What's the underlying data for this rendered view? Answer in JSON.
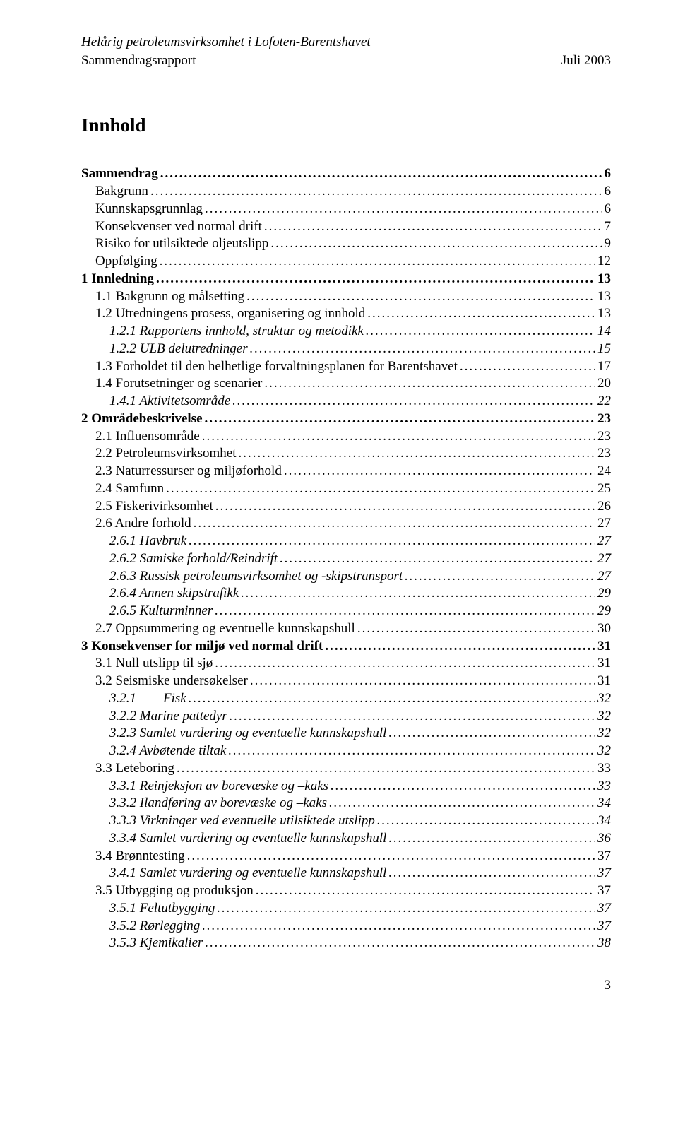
{
  "header": {
    "line1": "Helårig petroleumsvirksomhet i Lofoten-Barentshavet",
    "left2": "Sammendragsrapport",
    "right2": "Juli 2003"
  },
  "title": "Innhold",
  "page_number": "3",
  "toc": [
    {
      "level": 0,
      "label": "Sammendrag",
      "page": "6",
      "italic": false
    },
    {
      "level": 1,
      "label": "Bakgrunn",
      "page": "6",
      "italic": false
    },
    {
      "level": 1,
      "label": "Kunnskapsgrunnlag",
      "page": "6",
      "italic": false
    },
    {
      "level": 1,
      "label": "Konsekvenser ved normal drift",
      "page": "7",
      "italic": false
    },
    {
      "level": 1,
      "label": "Risiko for utilsiktede oljeutslipp",
      "page": "9",
      "italic": false
    },
    {
      "level": 1,
      "label": "Oppfølging",
      "page": "12",
      "italic": false
    },
    {
      "level": 0,
      "label": "1 Innledning",
      "page": "13",
      "italic": false
    },
    {
      "level": 1,
      "label": "1.1 Bakgrunn og målsetting",
      "page": "13",
      "italic": false
    },
    {
      "level": 1,
      "label": "1.2 Utredningens prosess, organisering og innhold",
      "page": "13",
      "italic": false
    },
    {
      "level": 2,
      "label": "1.2.1 Rapportens innhold, struktur og metodikk",
      "page": "14",
      "italic": true
    },
    {
      "level": 2,
      "label": "1.2.2 ULB delutredninger",
      "page": "15",
      "italic": true
    },
    {
      "level": 1,
      "label": "1.3 Forholdet til den helhetlige forvaltningsplanen for Barentshavet",
      "page": "17",
      "italic": false
    },
    {
      "level": 1,
      "label": "1.4 Forutsetninger og scenarier",
      "page": "20",
      "italic": false
    },
    {
      "level": 2,
      "label": "1.4.1 Aktivitetsområde",
      "page": "22",
      "italic": true
    },
    {
      "level": 0,
      "label": "2 Områdebeskrivelse",
      "page": "23",
      "italic": false
    },
    {
      "level": 1,
      "label": "2.1 Influensområde",
      "page": "23",
      "italic": false
    },
    {
      "level": 1,
      "label": "2.2 Petroleumsvirksomhet",
      "page": "23",
      "italic": false
    },
    {
      "level": 1,
      "label": "2.3 Naturressurser og miljøforhold",
      "page": "24",
      "italic": false
    },
    {
      "level": 1,
      "label": "2.4 Samfunn",
      "page": "25",
      "italic": false
    },
    {
      "level": 1,
      "label": "2.5 Fiskerivirksomhet",
      "page": "26",
      "italic": false
    },
    {
      "level": 1,
      "label": "2.6 Andre forhold",
      "page": "27",
      "italic": false
    },
    {
      "level": 2,
      "label": "2.6.1 Havbruk",
      "page": "27",
      "italic": true
    },
    {
      "level": 2,
      "label": "2.6.2 Samiske forhold/Reindrift",
      "page": "27",
      "italic": true
    },
    {
      "level": 2,
      "label": "2.6.3 Russisk petroleumsvirksomhet og -skipstransport",
      "page": "27",
      "italic": true
    },
    {
      "level": 2,
      "label": "2.6.4 Annen skipstrafikk",
      "page": "29",
      "italic": true
    },
    {
      "level": 2,
      "label": "2.6.5 Kulturminner",
      "page": "29",
      "italic": true
    },
    {
      "level": 1,
      "label": "2.7 Oppsummering og eventuelle kunnskapshull",
      "page": "30",
      "italic": false
    },
    {
      "level": 0,
      "label": "3 Konsekvenser for miljø ved normal drift",
      "page": "31",
      "italic": false
    },
    {
      "level": 1,
      "label": "3.1 Null utslipp til sjø",
      "page": "31",
      "italic": false
    },
    {
      "level": 1,
      "label": "3.2 Seismiske undersøkelser",
      "page": "31",
      "italic": false
    },
    {
      "level": 2,
      "label": "3.2.1 Fisk",
      "page": "32",
      "italic": true,
      "tab": true
    },
    {
      "level": 2,
      "label": "3.2.2 Marine pattedyr",
      "page": "32",
      "italic": true
    },
    {
      "level": 2,
      "label": "3.2.3 Samlet vurdering og eventuelle kunnskapshull",
      "page": "32",
      "italic": true
    },
    {
      "level": 2,
      "label": "3.2.4 Avbøtende tiltak",
      "page": "32",
      "italic": true
    },
    {
      "level": 1,
      "label": "3.3 Leteboring",
      "page": "33",
      "italic": false
    },
    {
      "level": 2,
      "label": "3.3.1 Reinjeksjon av borevæske og –kaks",
      "page": "33",
      "italic": true
    },
    {
      "level": 2,
      "label": "3.3.2 Ilandføring av borevæske og –kaks",
      "page": "34",
      "italic": true
    },
    {
      "level": 2,
      "label": "3.3.3 Virkninger ved eventuelle utilsiktede utslipp",
      "page": "34",
      "italic": true
    },
    {
      "level": 2,
      "label": "3.3.4 Samlet vurdering og eventuelle kunnskapshull",
      "page": "36",
      "italic": true
    },
    {
      "level": 1,
      "label": "3.4 Brønntesting",
      "page": "37",
      "italic": false
    },
    {
      "level": 2,
      "label": "3.4.1 Samlet vurdering og eventuelle kunnskapshull",
      "page": "37",
      "italic": true
    },
    {
      "level": 1,
      "label": "3.5 Utbygging og produksjon",
      "page": "37",
      "italic": false
    },
    {
      "level": 2,
      "label": "3.5.1 Feltutbygging",
      "page": "37",
      "italic": true
    },
    {
      "level": 2,
      "label": "3.5.2 Rørlegging",
      "page": "37",
      "italic": true
    },
    {
      "level": 2,
      "label": "3.5.3 Kjemikalier",
      "page": "38",
      "italic": true
    }
  ]
}
